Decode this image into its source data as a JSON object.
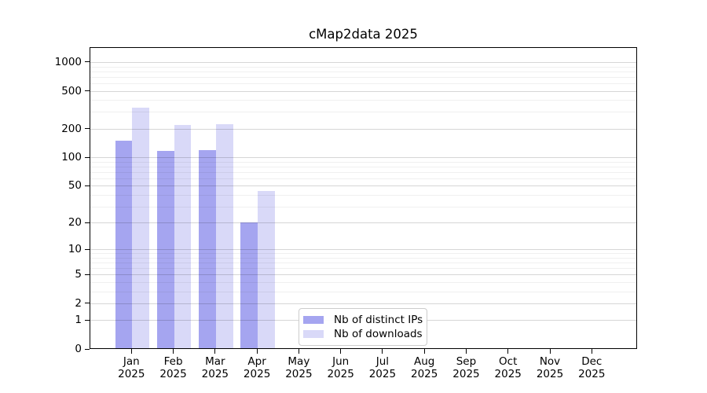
{
  "chart_data": {
    "type": "bar",
    "title": "cMap2data 2025",
    "categories": [
      "Jan",
      "Feb",
      "Mar",
      "Apr",
      "May",
      "Jun",
      "Jul",
      "Aug",
      "Sep",
      "Oct",
      "Nov",
      "Dec"
    ],
    "x_tick_year": "2025",
    "series": [
      {
        "name": "Nb of distinct IPs",
        "color": "#a5a5f0",
        "values": [
          150,
          118,
          120,
          20,
          0,
          0,
          0,
          0,
          0,
          0,
          0,
          0
        ]
      },
      {
        "name": "Nb of downloads",
        "color": "#d9d9f8",
        "values": [
          330,
          218,
          222,
          44,
          0,
          0,
          0,
          0,
          0,
          0,
          0,
          0
        ]
      }
    ],
    "y_ticks": [
      0,
      1,
      2,
      5,
      10,
      20,
      50,
      100,
      200,
      500,
      1000
    ],
    "y_scale": "log1p",
    "ylim": [
      0,
      1430
    ],
    "xlabel": "",
    "ylabel": "",
    "grid": true,
    "legend_position": "lower center inside"
  }
}
